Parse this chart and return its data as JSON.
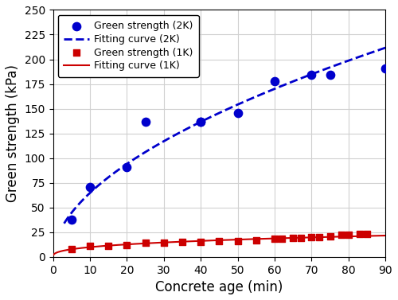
{
  "x2k": [
    5,
    10,
    20,
    25,
    40,
    40,
    50,
    60,
    70,
    75,
    90
  ],
  "y2k": [
    38,
    71,
    91,
    137,
    137,
    137,
    146,
    178,
    184,
    184,
    191
  ],
  "x1k": [
    5,
    10,
    15,
    20,
    25,
    30,
    35,
    40,
    45,
    50,
    55,
    60,
    62,
    65,
    67,
    70,
    72,
    75,
    78,
    80,
    83,
    85
  ],
  "y1k": [
    8,
    11,
    11,
    12,
    14,
    14,
    15,
    15,
    16,
    16,
    17,
    18,
    18,
    19,
    19,
    20,
    20,
    21,
    22,
    22,
    23,
    23
  ],
  "color_2k": "#0000cc",
  "color_1k": "#cc0000",
  "xlabel": "Concrete age (min)",
  "ylabel": "Green strength (kPa)",
  "xlim": [
    0,
    90
  ],
  "ylim": [
    0,
    250
  ],
  "yticks": [
    0,
    25,
    50,
    75,
    100,
    125,
    150,
    175,
    200,
    225,
    250
  ],
  "xticks": [
    0,
    10,
    20,
    30,
    40,
    50,
    60,
    70,
    80,
    90
  ],
  "legend_2k_pts": "Green strength (2K)",
  "legend_2k_fit": "Fitting curve (2K)",
  "legend_1k_pts": "Green strength (1K)",
  "legend_1k_fit": "Fitting curve (1K)",
  "fit2k_a": 14.5,
  "fit2k_b": 0.52,
  "fit1k_a": 3.5,
  "fit1k_b": 0.38,
  "figsize": [
    5.0,
    3.77
  ],
  "dpi": 100
}
